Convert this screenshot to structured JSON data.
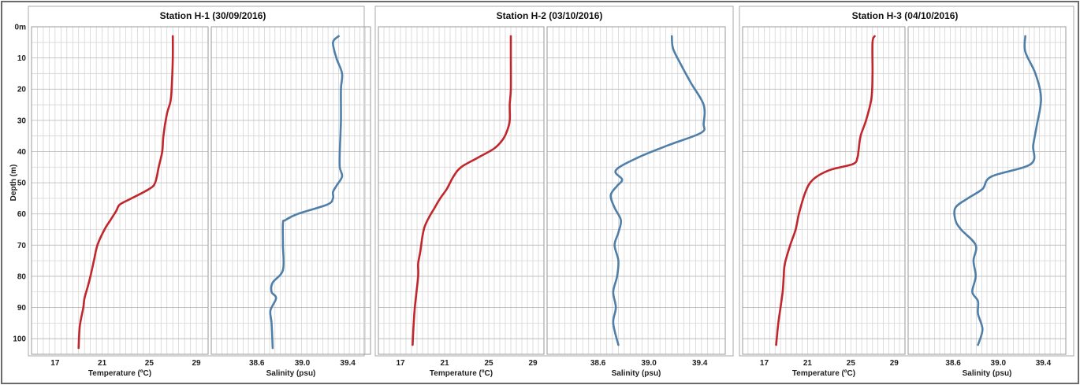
{
  "chart_data": {
    "type": "line",
    "ylabel": "Depth (m)",
    "ylim": [
      0,
      105
    ],
    "ylim_note": "depth increases downward",
    "y_ticks": [
      "0m",
      "10",
      "20",
      "30",
      "40",
      "50",
      "60",
      "70",
      "80",
      "90",
      "100"
    ],
    "grid": true,
    "temperature": {
      "xlabel": "Temperature (ºC)",
      "xlim": [
        15,
        30
      ],
      "x_ticks": [
        "17",
        "21",
        "25",
        "29"
      ],
      "color": "#c0272d"
    },
    "salinity": {
      "xlabel": "Salinity (psu)",
      "xlim": [
        38.2,
        39.6
      ],
      "x_ticks": [
        "38.6",
        "39.0",
        "39.4"
      ],
      "color": "#4f7fa8"
    },
    "stations": [
      {
        "title": "Station H-1 (30/09/2016)",
        "temperature": {
          "x": [
            27.0,
            27.0,
            26.9,
            26.8,
            26.5,
            26.2,
            26.1,
            25.8,
            25.5,
            25.0,
            23.5,
            22.5,
            22.2,
            21.7,
            21.2,
            20.6,
            20.3,
            20.0,
            19.8,
            19.5,
            19.4,
            19.1,
            19.0
          ],
          "y": [
            3,
            10,
            20,
            24,
            28,
            35,
            40,
            45,
            50,
            52,
            55,
            57,
            59,
            62,
            65,
            70,
            75,
            80,
            83,
            87,
            90,
            96,
            103
          ]
        },
        "salinity": {
          "x": [
            39.32,
            39.27,
            39.3,
            39.35,
            39.34,
            39.34,
            39.33,
            39.33,
            39.35,
            39.3,
            39.27,
            39.27,
            39.22,
            38.96,
            38.85,
            38.83,
            38.83,
            38.83,
            38.74,
            38.73,
            38.77,
            38.72,
            38.73,
            38.74
          ],
          "y": [
            3,
            5,
            10,
            15,
            20,
            30,
            40,
            45,
            48,
            51,
            53,
            55,
            57,
            60,
            62,
            63,
            70,
            78,
            82,
            85,
            87,
            91,
            95,
            103
          ]
        }
      },
      {
        "title": "Station H-2 (03/10/2016)",
        "temperature": {
          "x": [
            27.0,
            27.0,
            27.0,
            26.9,
            26.9,
            26.7,
            26.3,
            25.5,
            24.0,
            22.5,
            21.8,
            21.2,
            20.6,
            20.1,
            19.6,
            19.2,
            19.0,
            18.8,
            18.6,
            18.6,
            18.3,
            18.2,
            18.1
          ],
          "y": [
            3,
            10,
            20,
            25,
            30,
            33,
            36,
            39,
            42,
            45,
            48,
            52,
            55,
            58,
            61,
            64,
            67,
            72,
            76,
            80,
            90,
            95,
            102
          ]
        },
        "salinity": {
          "x": [
            39.18,
            39.19,
            39.25,
            39.33,
            39.43,
            39.43,
            39.41,
            39.15,
            38.91,
            38.74,
            38.79,
            38.75,
            38.7,
            38.73,
            38.78,
            38.76,
            38.73,
            38.76,
            38.75,
            38.72,
            38.74,
            38.72,
            38.76
          ],
          "y": [
            3,
            7,
            12,
            18,
            25,
            31,
            34,
            38,
            42,
            46,
            49,
            51,
            54,
            58,
            62,
            66,
            70,
            75,
            80,
            85,
            90,
            95,
            102
          ]
        }
      },
      {
        "title": "Station H-3 (04/10/2016)",
        "temperature": {
          "x": [
            27.2,
            27.0,
            27.0,
            26.9,
            26.4,
            25.9,
            25.7,
            25.6,
            25.2,
            23.0,
            21.5,
            20.8,
            20.2,
            19.9,
            19.4,
            18.9,
            18.8,
            18.7,
            18.5,
            18.3,
            18.1
          ],
          "y": [
            3,
            5,
            15,
            23,
            30,
            35,
            40,
            42,
            44,
            46,
            49,
            53,
            60,
            65,
            70,
            76,
            80,
            85,
            90,
            95,
            102
          ]
        },
        "salinity": {
          "x": [
            39.24,
            39.24,
            39.33,
            39.38,
            39.34,
            39.31,
            39.29,
            38.94,
            38.86,
            38.73,
            38.62,
            38.62,
            38.67,
            38.8,
            38.78,
            38.8,
            38.77,
            38.82,
            38.82,
            38.86,
            38.82
          ],
          "y": [
            3,
            8,
            15,
            23,
            32,
            38,
            44,
            48,
            52,
            55,
            58,
            62,
            65,
            70,
            75,
            80,
            85,
            88,
            92,
            97,
            102
          ]
        }
      }
    ]
  }
}
